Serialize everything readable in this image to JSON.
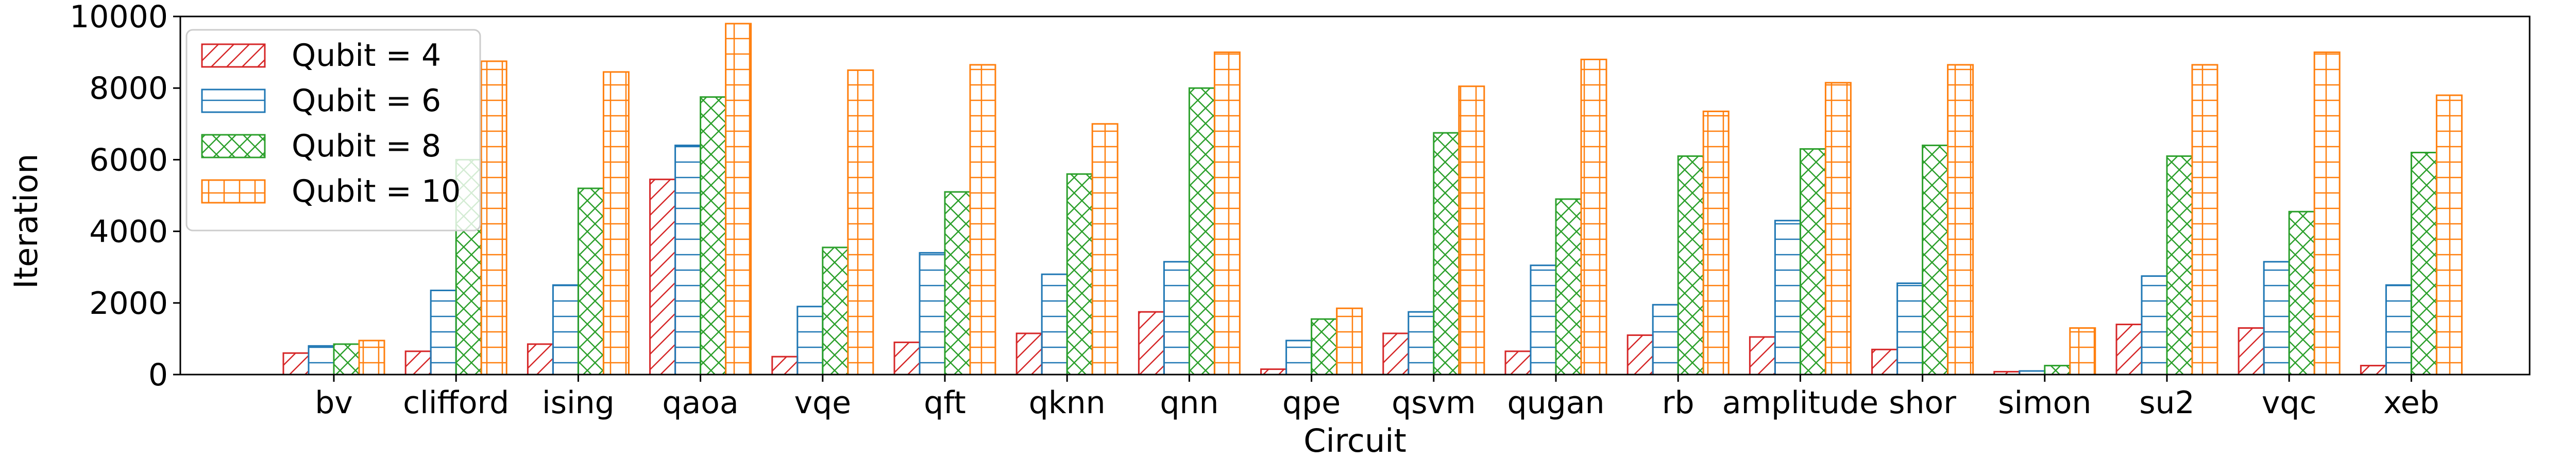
{
  "chart_data": {
    "type": "bar",
    "title": "",
    "xlabel": "Circuit",
    "ylabel": "Iteration",
    "ylim": [
      0,
      10000
    ],
    "yticks": [
      0,
      2000,
      4000,
      6000,
      8000,
      10000
    ],
    "grid": false,
    "legend_position": "top-left",
    "categories": [
      "bv",
      "clifford",
      "ising",
      "qaoa",
      "vqe",
      "qft",
      "qknn",
      "qnn",
      "qpe",
      "qsvm",
      "qugan",
      "rb",
      "amplitude",
      "shor",
      "simon",
      "su2",
      "vqc",
      "xeb"
    ],
    "series": [
      {
        "name": "Qubit = 4",
        "color": "#d62728",
        "hatch": "diagonal",
        "values": [
          600,
          650,
          850,
          5450,
          500,
          900,
          1150,
          1750,
          150,
          1150,
          650,
          1100,
          1050,
          700,
          80,
          1400,
          1300,
          250
        ]
      },
      {
        "name": "Qubit = 6",
        "color": "#1f77b4",
        "hatch": "horizontal",
        "values": [
          800,
          2350,
          2500,
          6400,
          1900,
          3400,
          2800,
          3150,
          950,
          1750,
          3050,
          1950,
          4300,
          2550,
          100,
          2750,
          3150,
          2500
        ]
      },
      {
        "name": "Qubit = 8",
        "color": "#2ca02c",
        "hatch": "crosshatch",
        "values": [
          850,
          6000,
          5200,
          7750,
          3550,
          5100,
          5600,
          8000,
          1550,
          6750,
          4900,
          6100,
          6300,
          6400,
          250,
          6100,
          4550,
          6200
        ]
      },
      {
        "name": "Qubit = 10",
        "color": "#ff7f0e",
        "hatch": "grid",
        "values": [
          950,
          8750,
          8450,
          9800,
          8500,
          8650,
          7000,
          9000,
          1850,
          8050,
          8800,
          7350,
          8150,
          8650,
          1300,
          8650,
          9000,
          7800
        ]
      }
    ]
  }
}
